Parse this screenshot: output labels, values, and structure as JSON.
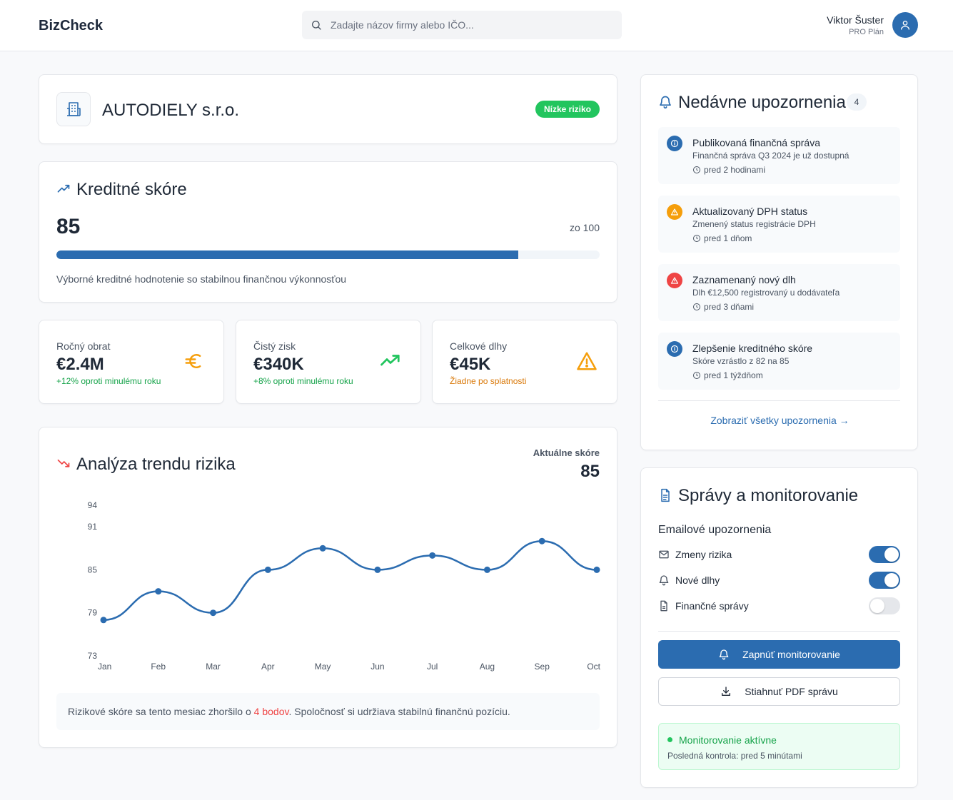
{
  "app": {
    "title": "BizCheck"
  },
  "search": {
    "placeholder": "Zadajte názov firmy alebo IČO..."
  },
  "user": {
    "name": "Viktor Šuster",
    "plan": "PRO Plán"
  },
  "company": {
    "name": "AUTODIELY s.r.o.",
    "risk_badge": "Nízke riziko"
  },
  "credit": {
    "title": "Kreditné skóre",
    "score": "85",
    "score_value": 85,
    "max": 100,
    "out_of": "zo 100",
    "description": "Výborné kreditné hodnotenie so stabilnou finančnou výkonnosťou"
  },
  "stats": [
    {
      "label": "Ročný obrat",
      "value": "€2.4M",
      "note": "+12% oproti minulému roku",
      "icon": "euro-icon"
    },
    {
      "label": "Čistý zisk",
      "value": "€340K",
      "note": "+8% oproti minulému roku",
      "icon": "trending-up-icon"
    },
    {
      "label": "Celkové dlhy",
      "value": "€45K",
      "note": "Žiadne po splatnosti",
      "icon": "warning-icon"
    }
  ],
  "colors": {
    "accent": "#2b6cb0",
    "success": "#22c55e",
    "warning": "#f59e0b",
    "danger": "#ef4444"
  },
  "trend": {
    "title": "Analýza trendu rizika",
    "current_label": "Aktuálne skóre",
    "current_value": "85",
    "note_before": "Rizikové skóre sa tento mesiac zhoršilo o ",
    "note_highlight": "4 bodov",
    "note_after": ". Spoločnosť si udržiava stabilnú finančnú pozíciu."
  },
  "chart_data": {
    "type": "line",
    "title": "Analýza trendu rizika",
    "categories": [
      "Jan",
      "Feb",
      "Mar",
      "Apr",
      "May",
      "Jun",
      "Jul",
      "Aug",
      "Sep",
      "Oct"
    ],
    "values": [
      78,
      82,
      79,
      85,
      88,
      85,
      87,
      85,
      89,
      85
    ],
    "y_ticks": [
      73,
      79,
      85,
      91,
      94
    ],
    "ylim": [
      73,
      94
    ],
    "xlabel": "",
    "ylabel": "",
    "grid": false
  },
  "alerts": {
    "title": "Nedávne upozornenia",
    "count": "4",
    "items": [
      {
        "title": "Publikovaná finančná správa",
        "desc": "Finančná správa Q3 2024 je už dostupná",
        "time": "pred 2 hodinami",
        "type": "info"
      },
      {
        "title": "Aktualizovaný DPH status",
        "desc": "Zmenený status registrácie DPH",
        "time": "pred 1 dňom",
        "type": "warning"
      },
      {
        "title": "Zaznamenaný nový dlh",
        "desc": "Dlh €12,500 registrovaný u dodávateľa",
        "time": "pred 3 dňami",
        "type": "danger"
      },
      {
        "title": "Zlepšenie kreditného skóre",
        "desc": "Skóre vzrástlo z 82 na 85",
        "time": "pred 1 týždňom",
        "type": "info"
      }
    ],
    "view_all": "Zobraziť všetky upozornenia →"
  },
  "reports": {
    "title": "Správy a monitorovanie",
    "email_heading": "Emailové upozornenia",
    "toggles": [
      {
        "label": "Zmeny rizika",
        "on": true,
        "icon": "mail-icon"
      },
      {
        "label": "Nové dlhy",
        "on": true,
        "icon": "bell-icon"
      },
      {
        "label": "Finančné správy",
        "on": false,
        "icon": "document-icon"
      }
    ],
    "enable_button": "Zapnúť monitorovanie",
    "download_button": "Stiahnuť PDF správu",
    "status_title": "Monitorovanie aktívne",
    "status_sub": "Posledná kontrola: pred 5 minútami"
  }
}
